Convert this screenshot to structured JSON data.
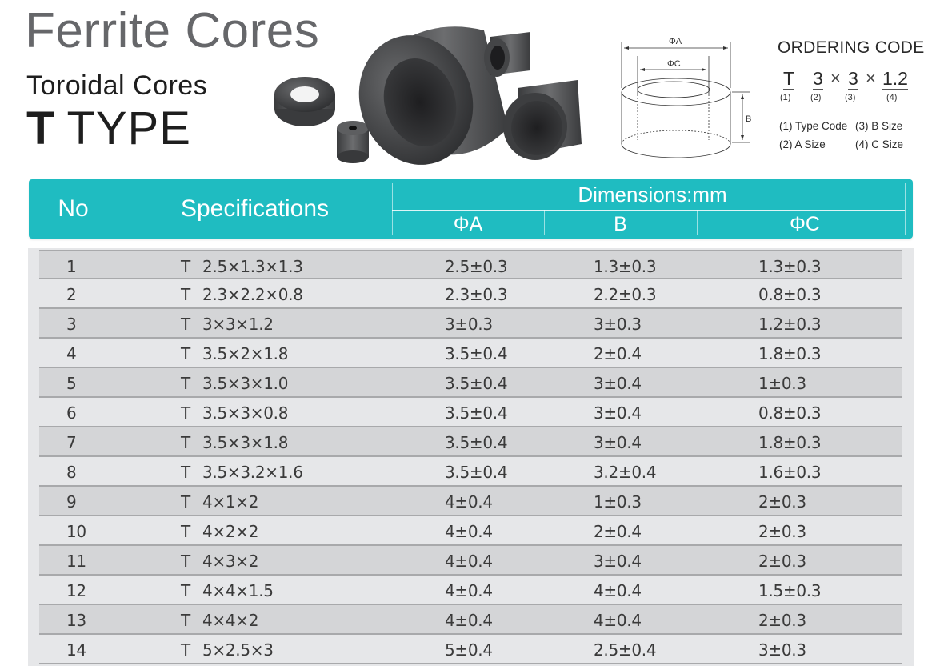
{
  "header": {
    "title": "Ferrite Cores",
    "subtitle": "Toroidal Cores",
    "type_prefix": "T",
    "type_label": "TYPE"
  },
  "diagram": {
    "label_a": "ΦA",
    "label_c": "ΦC",
    "label_b": "B"
  },
  "ordering_code": {
    "title": "ORDERING CODE",
    "parts": [
      "T",
      "3",
      "×",
      "3",
      "×",
      "1.2"
    ],
    "indices": [
      "(1)",
      "(2)",
      "(3)",
      "(4)"
    ],
    "legend": {
      "l1": "(1) Type Code",
      "l3": "(3) B Size",
      "l2": "(2) A Size",
      "l4": "(4) C Size"
    }
  },
  "table": {
    "headers": {
      "no": "No",
      "spec": "Specifications",
      "dimensions": "Dimensions:mm",
      "a": "ΦA",
      "b": "B",
      "c": "ΦC"
    },
    "rows": [
      {
        "no": "1",
        "type": "T",
        "spec": "2.5×1.3×1.3",
        "a": "2.5±0.3",
        "b": "1.3±0.3",
        "c": "1.3±0.3"
      },
      {
        "no": "2",
        "type": "T",
        "spec": "2.3×2.2×0.8",
        "a": "2.3±0.3",
        "b": "2.2±0.3",
        "c": "0.8±0.3"
      },
      {
        "no": "3",
        "type": "T",
        "spec": "3×3×1.2",
        "a": "3±0.3",
        "b": "3±0.3",
        "c": "1.2±0.3"
      },
      {
        "no": "4",
        "type": "T",
        "spec": "3.5×2×1.8",
        "a": "3.5±0.4",
        "b": "2±0.4",
        "c": "1.8±0.3"
      },
      {
        "no": "5",
        "type": "T",
        "spec": "3.5×3×1.0",
        "a": "3.5±0.4",
        "b": "3±0.4",
        "c": "1±0.3"
      },
      {
        "no": "6",
        "type": "T",
        "spec": "3.5×3×0.8",
        "a": "3.5±0.4",
        "b": "3±0.4",
        "c": "0.8±0.3"
      },
      {
        "no": "7",
        "type": "T",
        "spec": "3.5×3×1.8",
        "a": "3.5±0.4",
        "b": "3±0.4",
        "c": "1.8±0.3"
      },
      {
        "no": "8",
        "type": "T",
        "spec": "3.5×3.2×1.6",
        "a": "3.5±0.4",
        "b": "3.2±0.4",
        "c": "1.6±0.3"
      },
      {
        "no": "9",
        "type": "T",
        "spec": "4×1×2",
        "a": "4±0.4",
        "b": "1±0.3",
        "c": "2±0.3"
      },
      {
        "no": "10",
        "type": "T",
        "spec": "4×2×2",
        "a": "4±0.4",
        "b": "2±0.4",
        "c": "2±0.3"
      },
      {
        "no": "11",
        "type": "T",
        "spec": "4×3×2",
        "a": "4±0.4",
        "b": "3±0.4",
        "c": "2±0.3"
      },
      {
        "no": "12",
        "type": "T",
        "spec": "4×4×1.5",
        "a": "4±0.4",
        "b": "4±0.4",
        "c": "1.5±0.3"
      },
      {
        "no": "13",
        "type": "T",
        "spec": "4×4×2",
        "a": "4±0.4",
        "b": "4±0.4",
        "c": "2±0.3"
      },
      {
        "no": "14",
        "type": "T",
        "spec": "5×2.5×3",
        "a": "5±0.4",
        "b": "2.5±0.4",
        "c": "3±0.3"
      }
    ]
  },
  "colors": {
    "header_teal": "#1fbcc1",
    "row_dark": "#d4d5d7",
    "row_light": "#e6e7e9",
    "title_grey": "#66676a"
  }
}
